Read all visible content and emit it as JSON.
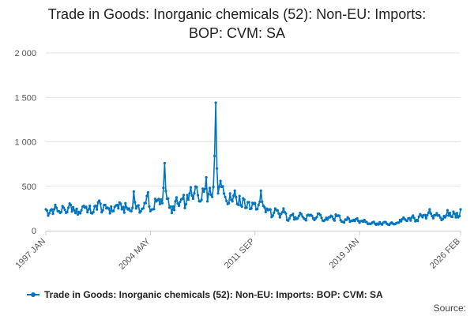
{
  "chart_data": {
    "type": "line",
    "title_line1": "Trade in Goods: Inorganic chemicals (52): Non-EU: Imports:",
    "title_line2": "BOP: CVM: SA",
    "xlabel": "",
    "ylabel": "",
    "ylim": [
      0,
      2000
    ],
    "yticks": [
      0,
      500,
      1000,
      1500,
      2000
    ],
    "ytick_labels": [
      "0",
      "500",
      "1 000",
      "1 500",
      "2 000"
    ],
    "x_start": "1997 JAN",
    "x_end": "2026 FEB",
    "x_months_total": 349,
    "xtick_labels": [
      "1997 JAN",
      "2004 MAY",
      "2011 SEP",
      "2019 JAN",
      "2026 FEB"
    ],
    "xtick_months": [
      0,
      88,
      176,
      264,
      349
    ],
    "color": "#0075bf",
    "series": [
      {
        "name": "Trade in Goods: Inorganic chemicals (52): Non-EU: Imports: BOP: CVM: SA",
        "anchors": [
          [
            0,
            240
          ],
          [
            2,
            170
          ],
          [
            4,
            230
          ],
          [
            6,
            190
          ],
          [
            8,
            290
          ],
          [
            10,
            220
          ],
          [
            12,
            200
          ],
          [
            15,
            260
          ],
          [
            18,
            210
          ],
          [
            21,
            290
          ],
          [
            24,
            230
          ],
          [
            28,
            210
          ],
          [
            32,
            280
          ],
          [
            36,
            240
          ],
          [
            40,
            210
          ],
          [
            44,
            320
          ],
          [
            48,
            230
          ],
          [
            52,
            260
          ],
          [
            56,
            220
          ],
          [
            60,
            290
          ],
          [
            64,
            240
          ],
          [
            68,
            260
          ],
          [
            72,
            220
          ],
          [
            74,
            440
          ],
          [
            76,
            250
          ],
          [
            80,
            220
          ],
          [
            84,
            310
          ],
          [
            86,
            430
          ],
          [
            88,
            220
          ],
          [
            90,
            240
          ],
          [
            93,
            330
          ],
          [
            96,
            300
          ],
          [
            98,
            310
          ],
          [
            100,
            760
          ],
          [
            102,
            360
          ],
          [
            104,
            260
          ],
          [
            106,
            200
          ],
          [
            109,
            330
          ],
          [
            112,
            280
          ],
          [
            115,
            360
          ],
          [
            118,
            300
          ],
          [
            121,
            420
          ],
          [
            124,
            360
          ],
          [
            127,
            490
          ],
          [
            130,
            330
          ],
          [
            133,
            440
          ],
          [
            135,
            600
          ],
          [
            136,
            330
          ],
          [
            138,
            480
          ],
          [
            140,
            380
          ],
          [
            142,
            840
          ],
          [
            143,
            1440
          ],
          [
            144,
            700
          ],
          [
            145,
            420
          ],
          [
            147,
            560
          ],
          [
            149,
            500
          ],
          [
            151,
            380
          ],
          [
            153,
            300
          ],
          [
            155,
            420
          ],
          [
            157,
            330
          ],
          [
            159,
            450
          ],
          [
            161,
            300
          ],
          [
            163,
            390
          ],
          [
            165,
            270
          ],
          [
            167,
            350
          ],
          [
            169,
            260
          ],
          [
            171,
            320
          ],
          [
            173,
            250
          ],
          [
            175,
            300
          ],
          [
            177,
            240
          ],
          [
            179,
            290
          ],
          [
            181,
            450
          ],
          [
            183,
            280
          ],
          [
            185,
            210
          ],
          [
            188,
            240
          ],
          [
            191,
            170
          ],
          [
            194,
            230
          ],
          [
            197,
            150
          ],
          [
            200,
            250
          ],
          [
            203,
            120
          ],
          [
            206,
            170
          ],
          [
            210,
            150
          ],
          [
            214,
            200
          ],
          [
            218,
            130
          ],
          [
            222,
            170
          ],
          [
            226,
            120
          ],
          [
            230,
            190
          ],
          [
            234,
            110
          ],
          [
            238,
            150
          ],
          [
            242,
            130
          ],
          [
            246,
            170
          ],
          [
            250,
            100
          ],
          [
            254,
            150
          ],
          [
            258,
            110
          ],
          [
            262,
            140
          ],
          [
            264,
            90
          ],
          [
            268,
            120
          ],
          [
            272,
            80
          ],
          [
            276,
            100
          ],
          [
            280,
            70
          ],
          [
            284,
            90
          ],
          [
            288,
            70
          ],
          [
            292,
            80
          ],
          [
            296,
            90
          ],
          [
            300,
            130
          ],
          [
            304,
            110
          ],
          [
            308,
            150
          ],
          [
            312,
            120
          ],
          [
            316,
            170
          ],
          [
            320,
            140
          ],
          [
            323,
            240
          ],
          [
            326,
            140
          ],
          [
            330,
            170
          ],
          [
            334,
            130
          ],
          [
            338,
            230
          ],
          [
            341,
            160
          ],
          [
            344,
            190
          ],
          [
            347,
            150
          ],
          [
            349,
            240
          ]
        ]
      }
    ]
  },
  "legend": {
    "label": "Trade in Goods: Inorganic chemicals (52): Non-EU: Imports: BOP: CVM: SA"
  },
  "footer": {
    "source_label": "Source:"
  }
}
